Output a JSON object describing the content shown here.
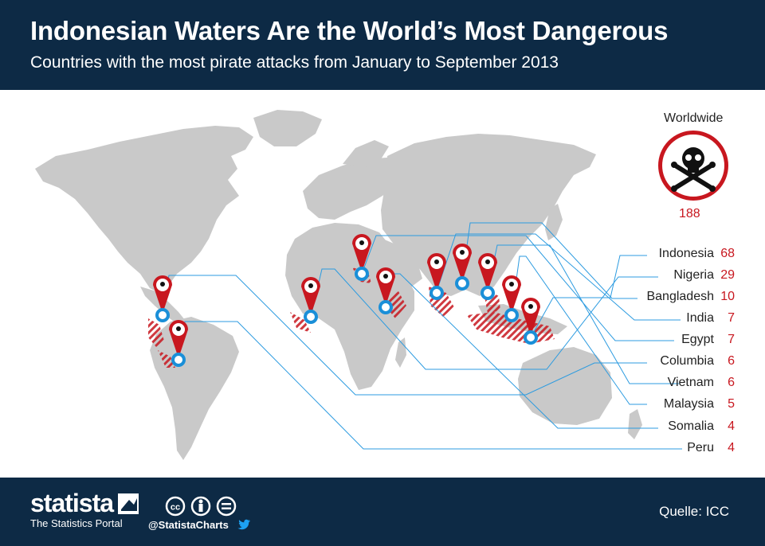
{
  "header": {
    "title": "Indonesian Waters Are the World’s Most Dangerous",
    "subtitle": "Countries with the most pirate attacks from January to September 2013"
  },
  "worldwide": {
    "label": "Worldwide",
    "value": "188"
  },
  "legend": [
    {
      "country": "Indonesia",
      "value": "68"
    },
    {
      "country": "Nigeria",
      "value": "29"
    },
    {
      "country": "Bangladesh",
      "value": "10"
    },
    {
      "country": "India",
      "value": "7"
    },
    {
      "country": "Egypt",
      "value": "7"
    },
    {
      "country": "Columbia",
      "value": "6"
    },
    {
      "country": "Vietnam",
      "value": "6"
    },
    {
      "country": "Malaysia",
      "value": "5"
    },
    {
      "country": "Somalia",
      "value": "4"
    },
    {
      "country": "Peru",
      "value": "4"
    }
  ],
  "footer": {
    "brand": "statista",
    "brand_sub": "The Statistics Portal",
    "handle": "@StatistaCharts",
    "source": "Quelle: ICC"
  },
  "colors": {
    "navy": "#0d2a45",
    "red": "#c8171f",
    "blue": "#1a8fd8",
    "land": "#c9c9c9",
    "leader": "#2c9be0"
  },
  "icons": [
    "skull-crossbones-icon",
    "map-pin-icon",
    "creative-commons-icon",
    "twitter-icon"
  ]
}
